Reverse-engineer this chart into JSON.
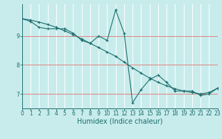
{
  "xlabel": "Humidex (Indice chaleur)",
  "bg_color": "#c8ecec",
  "line_color": "#1a6b6b",
  "line1_x": [
    0,
    1,
    2,
    3,
    4,
    5,
    6,
    7,
    8,
    9,
    10,
    11,
    12,
    13,
    14,
    15,
    16,
    17,
    18,
    19,
    20,
    21,
    22,
    23
  ],
  "line1_y": [
    9.6,
    9.5,
    9.3,
    9.25,
    9.25,
    9.25,
    9.1,
    8.85,
    8.75,
    9.0,
    8.85,
    9.9,
    9.1,
    6.7,
    7.15,
    7.5,
    7.65,
    7.4,
    7.1,
    7.1,
    7.1,
    6.95,
    7.0,
    7.2
  ],
  "line2_x": [
    0,
    1,
    2,
    3,
    4,
    5,
    6,
    7,
    8,
    9,
    10,
    11,
    12,
    13,
    14,
    15,
    16,
    17,
    18,
    19,
    20,
    21,
    22,
    23
  ],
  "line2_y": [
    9.6,
    9.55,
    9.48,
    9.4,
    9.3,
    9.18,
    9.05,
    8.9,
    8.75,
    8.6,
    8.45,
    8.3,
    8.1,
    7.9,
    7.72,
    7.55,
    7.4,
    7.28,
    7.18,
    7.1,
    7.05,
    7.0,
    7.05,
    7.2
  ],
  "xlim": [
    0,
    23
  ],
  "ylim": [
    6.5,
    10.1
  ],
  "yticks": [
    7,
    8,
    9
  ],
  "xticks": [
    0,
    1,
    2,
    3,
    4,
    5,
    6,
    7,
    8,
    9,
    10,
    11,
    12,
    13,
    14,
    15,
    16,
    17,
    18,
    19,
    20,
    21,
    22,
    23
  ],
  "tick_fontsize": 5.5,
  "label_fontsize": 7.0
}
